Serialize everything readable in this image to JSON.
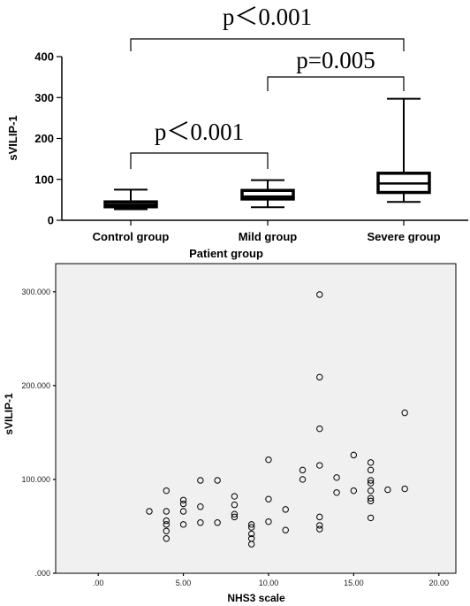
{
  "chart_data": [
    {
      "type": "box",
      "ylabel": "sVILIP-1",
      "xlabel": "Patient group",
      "ylim": [
        0,
        400
      ],
      "yticks": [
        0,
        100,
        200,
        300,
        400
      ],
      "categories": [
        "Control group",
        "Mild group",
        "Severe group"
      ],
      "boxes": [
        {
          "min": 27,
          "q1": 33,
          "median": 38,
          "q3": 45,
          "max": 75
        },
        {
          "min": 32,
          "q1": 52,
          "median": 58,
          "q3": 73,
          "max": 98
        },
        {
          "min": 45,
          "q1": 68,
          "median": 90,
          "q3": 115,
          "max": 297
        }
      ],
      "comparisons": [
        {
          "from": 0,
          "to": 1,
          "label": "p＜0.001"
        },
        {
          "from": 1,
          "to": 2,
          "label": "p=0.005"
        },
        {
          "from": 0,
          "to": 2,
          "label": "p＜0.001"
        }
      ]
    },
    {
      "type": "scatter",
      "xlabel": "NHS3 scale",
      "ylabel": "sVILIP-1",
      "xlim": [
        -2.5,
        21
      ],
      "ylim": [
        0,
        330
      ],
      "xticks": [
        ".00",
        "5.00",
        "10.00",
        "15.00",
        "20.00"
      ],
      "yticks": [
        ".000",
        "100.000",
        "200.000",
        "300.000"
      ],
      "points": [
        [
          3,
          66
        ],
        [
          4,
          88
        ],
        [
          4,
          66
        ],
        [
          4,
          56
        ],
        [
          4,
          52
        ],
        [
          4,
          45
        ],
        [
          4,
          37
        ],
        [
          5,
          78
        ],
        [
          5,
          74
        ],
        [
          5,
          66
        ],
        [
          5,
          52
        ],
        [
          6,
          99
        ],
        [
          6,
          71
        ],
        [
          6,
          54
        ],
        [
          7,
          99
        ],
        [
          7,
          54
        ],
        [
          8,
          82
        ],
        [
          8,
          73
        ],
        [
          8,
          63
        ],
        [
          8,
          60
        ],
        [
          9,
          52
        ],
        [
          9,
          49
        ],
        [
          9,
          42
        ],
        [
          9,
          37
        ],
        [
          9,
          31
        ],
        [
          10,
          121
        ],
        [
          10,
          79
        ],
        [
          10,
          55
        ],
        [
          11,
          68
        ],
        [
          11,
          46
        ],
        [
          12,
          110
        ],
        [
          12,
          100
        ],
        [
          13,
          297
        ],
        [
          13,
          209
        ],
        [
          13,
          154
        ],
        [
          13,
          115
        ],
        [
          13,
          60
        ],
        [
          13,
          51
        ],
        [
          13,
          47
        ],
        [
          14,
          102
        ],
        [
          14,
          86
        ],
        [
          15,
          126
        ],
        [
          15,
          88
        ],
        [
          16,
          118
        ],
        [
          16,
          110
        ],
        [
          16,
          99
        ],
        [
          16,
          96
        ],
        [
          16,
          88
        ],
        [
          16,
          80
        ],
        [
          16,
          77
        ],
        [
          16,
          59
        ],
        [
          17,
          89
        ],
        [
          18,
          171
        ],
        [
          18,
          90
        ]
      ]
    }
  ]
}
